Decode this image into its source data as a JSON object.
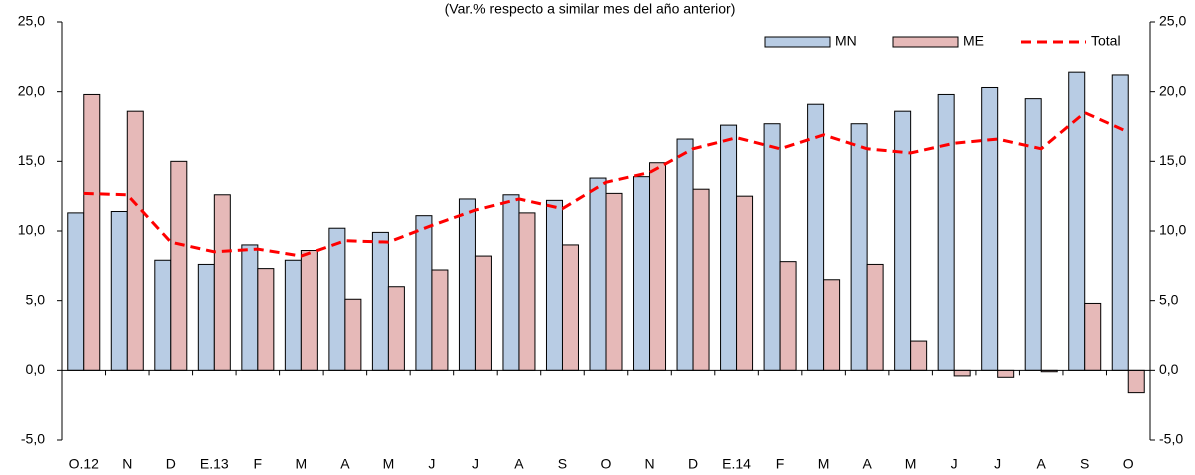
{
  "chart_data": {
    "type": "bar",
    "subtitle": "(Var.% respecto a similar mes del año anterior)",
    "categories": [
      "O.12",
      "N",
      "D",
      "E.13",
      "F",
      "M",
      "A",
      "M",
      "J",
      "J",
      "A",
      "S",
      "O",
      "N",
      "D",
      "E.14",
      "F",
      "M",
      "A",
      "M",
      "J",
      "J",
      "A",
      "S",
      "O"
    ],
    "series": [
      {
        "name": "MN",
        "type": "bar",
        "color": "#b8cce4",
        "values": [
          11.3,
          11.4,
          7.9,
          7.6,
          9.0,
          7.9,
          10.2,
          9.9,
          11.1,
          12.3,
          12.6,
          12.2,
          13.8,
          13.9,
          16.6,
          17.6,
          17.7,
          19.1,
          17.7,
          18.6,
          19.8,
          20.3,
          19.5,
          21.4,
          21.2
        ]
      },
      {
        "name": "ME",
        "type": "bar",
        "color": "#e6b9b8",
        "values": [
          19.8,
          18.6,
          15.0,
          12.6,
          7.3,
          8.6,
          5.1,
          6.0,
          7.2,
          8.2,
          11.3,
          9.0,
          12.7,
          14.9,
          13.0,
          12.5,
          7.8,
          6.5,
          7.6,
          2.1,
          -0.4,
          -0.5,
          -0.1,
          4.8,
          -1.6
        ]
      },
      {
        "name": "Total",
        "type": "line",
        "color": "#ff0000",
        "values": [
          12.7,
          12.6,
          9.2,
          8.5,
          8.7,
          8.2,
          9.3,
          9.2,
          10.4,
          11.5,
          12.3,
          11.6,
          13.5,
          14.2,
          15.9,
          16.7,
          15.9,
          16.9,
          15.9,
          15.6,
          16.3,
          16.6,
          15.9,
          18.5,
          17.1
        ]
      }
    ],
    "ylim": [
      -5,
      25
    ],
    "yticks": [
      {
        "value": -5,
        "label": "-5,0"
      },
      {
        "value": 0,
        "label": "0,0"
      },
      {
        "value": 5,
        "label": "5,0"
      },
      {
        "value": 10,
        "label": "10,0"
      },
      {
        "value": 15,
        "label": "15,0"
      },
      {
        "value": 20,
        "label": "20,0"
      },
      {
        "value": 25,
        "label": "25,0"
      }
    ],
    "y2lim": [
      -5,
      25
    ],
    "y2ticks": [
      {
        "value": -5,
        "label": "-5,0"
      },
      {
        "value": 0,
        "label": "0,0"
      },
      {
        "value": 5,
        "label": "5,0"
      },
      {
        "value": 10,
        "label": "10,0"
      },
      {
        "value": 15,
        "label": "15,0"
      },
      {
        "value": 20,
        "label": "20,0"
      },
      {
        "value": 25,
        "label": "25,0"
      }
    ],
    "legend": "top-right"
  }
}
